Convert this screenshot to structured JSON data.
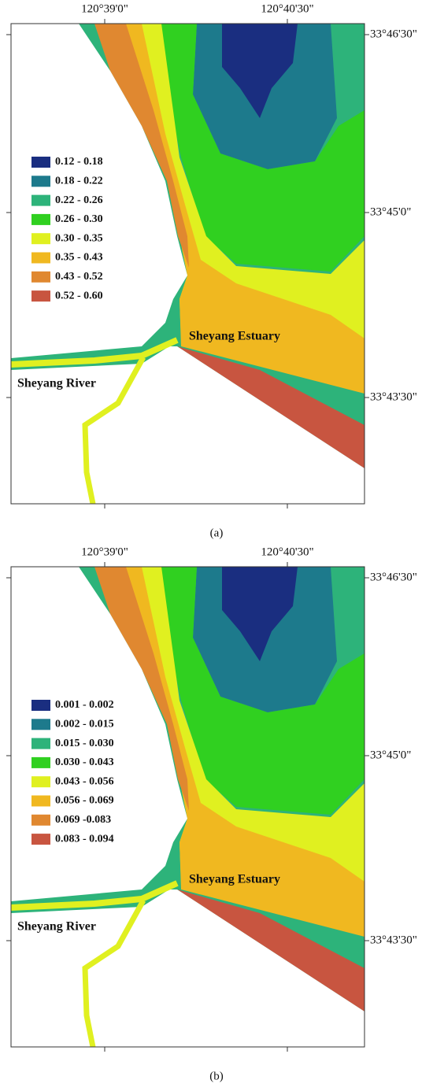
{
  "legend_colors": [
    "#1a2e80",
    "#1d7a8c",
    "#2db37a",
    "#30d020",
    "#e0f020",
    "#f0b820",
    "#e08830",
    "#c85540"
  ],
  "panels": [
    {
      "caption": "(a)",
      "x_labels": [
        "120°39'0\"",
        "120°40'30\""
      ],
      "y_labels": [
        "33°46'30\"",
        "33°45'0\"",
        "33°43'30\""
      ],
      "legend": [
        "0.12 - 0.18",
        "0.18 - 0.22",
        "0.22 - 0.26",
        "0.26 - 0.30",
        "0.30 - 0.35",
        "0.35 - 0.43",
        "0.43 - 0.52",
        "0.52 - 0.60"
      ],
      "places": [
        "Sheyang Estuary",
        "Sheyang River"
      ]
    },
    {
      "caption": "(b)",
      "x_labels": [
        "120°39'0\"",
        "120°40'30\""
      ],
      "y_labels": [
        "33°46'30\"",
        "33°45'0\"",
        "33°43'30\""
      ],
      "legend": [
        "0.001 - 0.002",
        "0.002 - 0.015",
        "0.015 - 0.030",
        "0.030 - 0.043",
        "0.043 - 0.056",
        "0.056 - 0.069",
        "0.069 -0.083",
        "0.083 - 0.094"
      ],
      "places": [
        "Sheyang Estuary",
        "Sheyang River"
      ]
    }
  ]
}
